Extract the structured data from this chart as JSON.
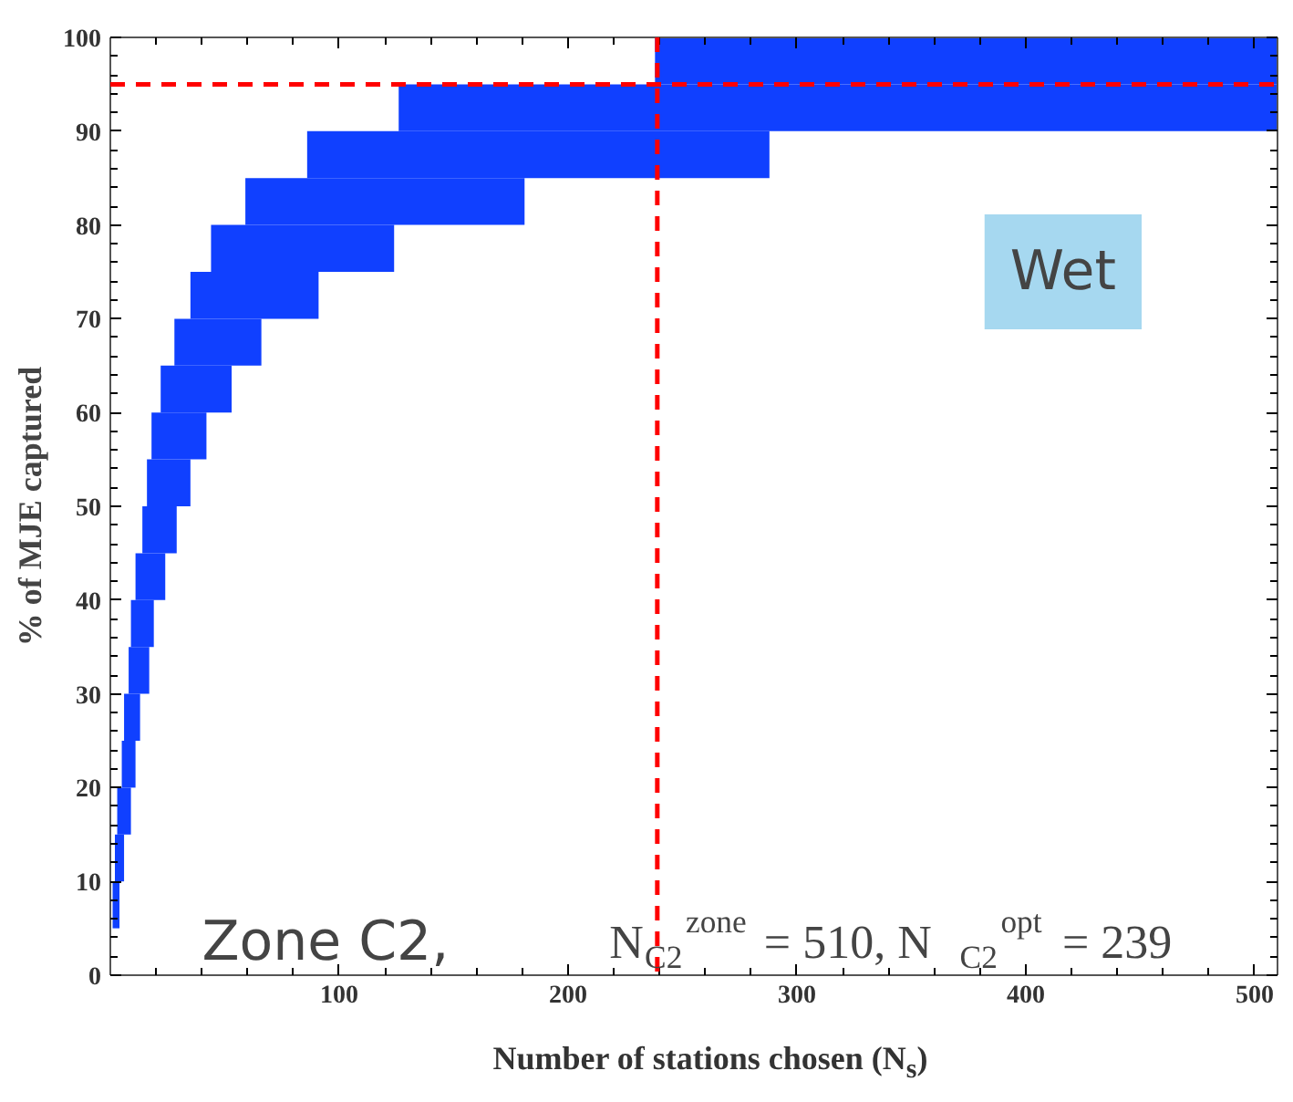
{
  "chart_data": {
    "type": "bar",
    "orientation": "horizontal",
    "xlabel": "Number of stations chosen (N$_{s}$)",
    "ylabel": "% of MJE captured",
    "x": [
      97.5,
      92.5,
      87.5,
      82.5,
      77.5,
      72.5,
      67.5,
      62.5,
      57.5,
      52.5,
      47.5,
      42.5,
      37.5,
      32.5,
      27.5,
      22.5,
      17.5,
      12.5,
      7.5
    ],
    "base": [
      238,
      126,
      86,
      59,
      44,
      35,
      28,
      22,
      18,
      16,
      14,
      11,
      9,
      8,
      6,
      5,
      3,
      2,
      1
    ],
    "values": [
      272,
      384,
      202,
      122,
      80,
      56,
      38,
      31,
      24,
      19,
      15,
      13,
      10,
      9,
      7,
      6,
      6,
      4,
      3
    ],
    "color": "#1040ff",
    "xlim": [
      0,
      510
    ],
    "xticks": [
      100,
      200,
      300,
      400,
      500
    ],
    "ylim": [
      0,
      100
    ],
    "yticks": [
      0,
      10,
      20,
      30,
      40,
      50,
      60,
      70,
      80,
      90,
      100
    ],
    "ref_lines": [
      {
        "axis": "y",
        "value": 95,
        "color": "#ff0000",
        "line_style": "dashed"
      },
      {
        "axis": "x",
        "value": 239,
        "color": "#ff0000",
        "line_style": "dashed"
      }
    ],
    "annotations": [
      "Wet",
      "Zone C2,",
      "N$_{C2}$$^{zone}$ = 510, N$_{C2}$$^{opt}$ = 239"
    ],
    "grid": false
  }
}
